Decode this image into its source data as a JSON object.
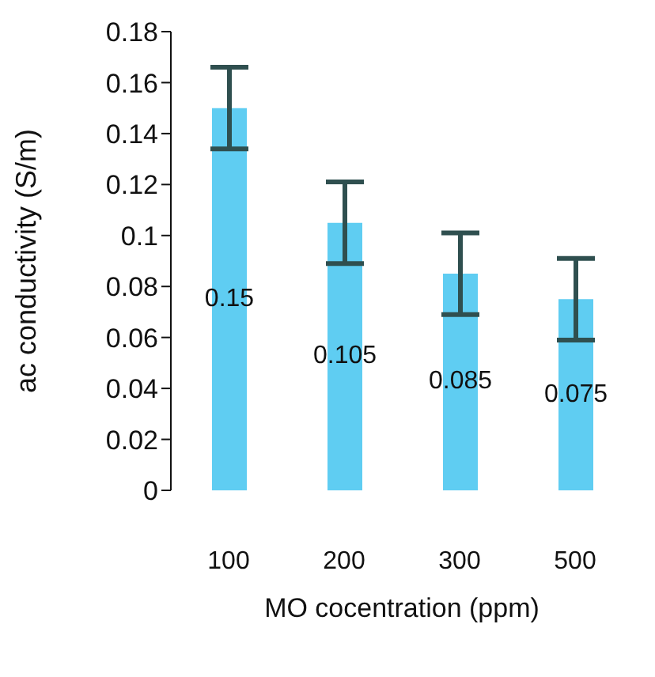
{
  "chart_data": {
    "type": "bar",
    "xlabel": "MO cocentration (ppm)",
    "ylabel": "ac conductivity (S/m)",
    "categories": [
      "100",
      "200",
      "300",
      "500"
    ],
    "values": [
      0.15,
      0.105,
      0.085,
      0.075
    ],
    "errors": [
      0.016,
      0.016,
      0.016,
      0.016
    ],
    "color": "#5fcdf2",
    "ylim": [
      0,
      0.18
    ],
    "yticks": [
      0,
      0.02,
      0.04,
      0.06,
      0.08,
      0.1,
      0.12,
      0.14,
      0.16,
      0.18
    ],
    "data_labels": true,
    "grid": false
  }
}
